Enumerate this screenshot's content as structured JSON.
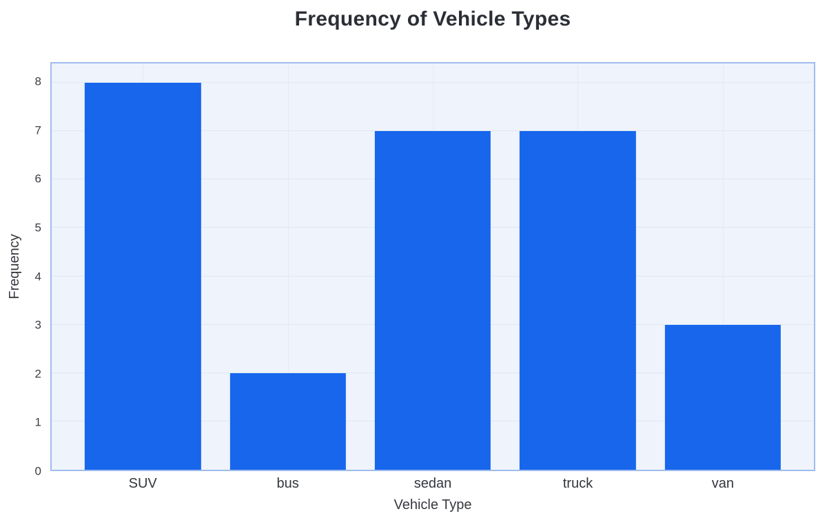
{
  "chart_data": {
    "type": "bar",
    "title": "Frequency of Vehicle Types",
    "categories": [
      "SUV",
      "bus",
      "sedan",
      "truck",
      "van"
    ],
    "values": [
      8,
      2,
      7,
      7,
      3
    ],
    "xlabel": "Vehicle Type",
    "ylabel": "Frequency",
    "ylim": [
      0,
      8.4
    ],
    "yticks": [
      0,
      1,
      2,
      3,
      4,
      5,
      6,
      7,
      8
    ],
    "grid": true,
    "legend_position": "none",
    "colors": {
      "bar": "#1766ec",
      "plot_background": "#eff3fb",
      "plot_border": "#9fbcee",
      "h_gridline": "#dde8f7",
      "v_gridline": "#e2eaf8",
      "title_text": "#2b2e35",
      "tick_text": "#3a3d43"
    }
  }
}
